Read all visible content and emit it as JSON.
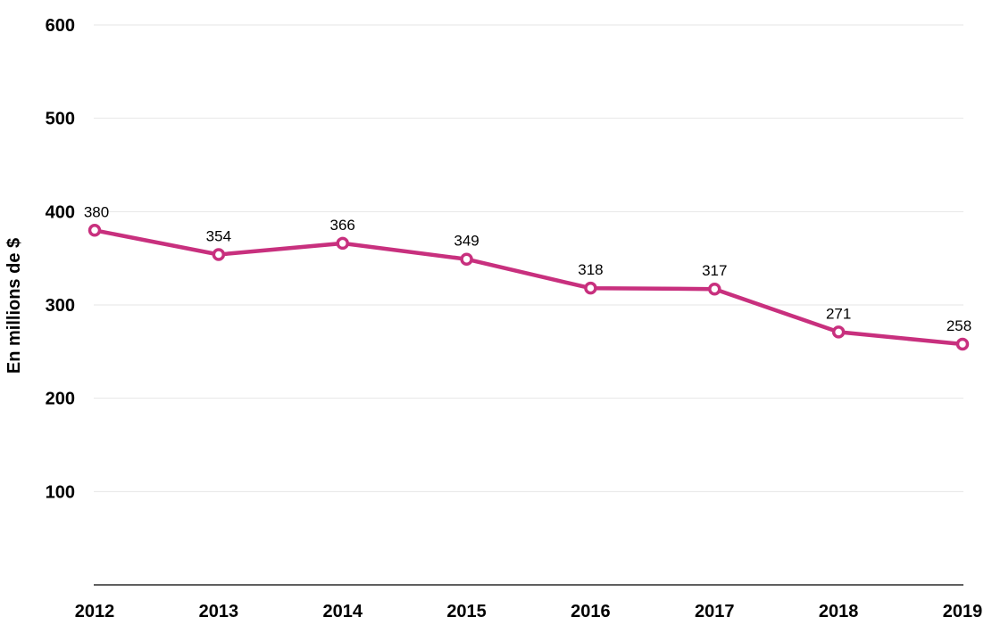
{
  "chart_data": {
    "type": "line",
    "x": [
      "2012",
      "2013",
      "2014",
      "2015",
      "2016",
      "2017",
      "2018",
      "2019"
    ],
    "series": [
      {
        "values": [
          380,
          354,
          366,
          349,
          318,
          317,
          271,
          258
        ],
        "data_labels": [
          "380",
          "354",
          "366",
          "349",
          "318",
          "317",
          "271",
          "258"
        ],
        "color": "#c8307e"
      }
    ],
    "ylabel": "En millions de $",
    "ylim": [
      0,
      600
    ],
    "yticks": [
      100,
      200,
      300,
      400,
      500,
      600
    ],
    "ytick_labels": [
      "100",
      "200",
      "300",
      "400",
      "500",
      "600"
    ],
    "grid": "horizontal",
    "gridline_color": "#e6e6e6",
    "axis_color": "#000000",
    "legend": "none"
  }
}
